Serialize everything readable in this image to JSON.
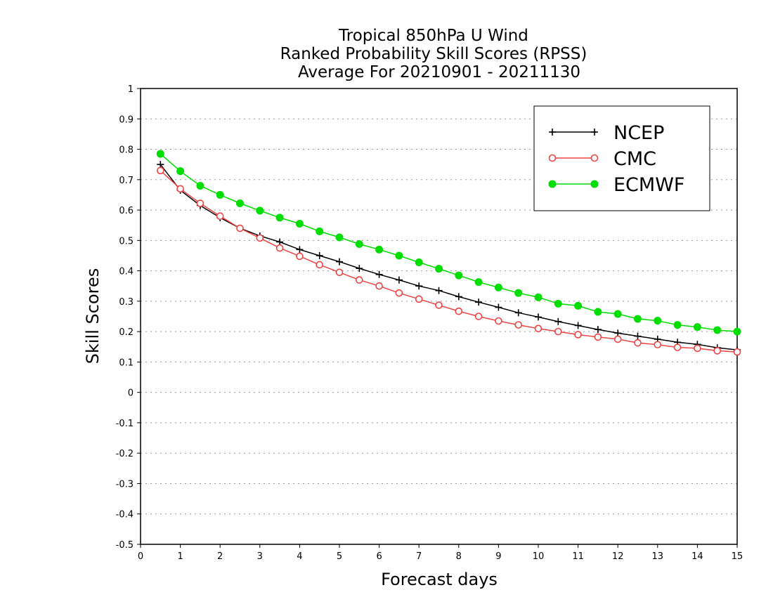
{
  "chart_data": {
    "type": "line",
    "title": [
      "Tropical 850hPa U Wind",
      "Ranked Probability Skill Scores (RPSS)",
      "Average For 20210901 - 20211130"
    ],
    "xlabel": "Forecast days",
    "ylabel": "Skill Scores",
    "xlim": [
      0,
      15
    ],
    "ylim": [
      -0.5,
      1
    ],
    "xticks": [
      "0",
      "1",
      "2",
      "3",
      "4",
      "5",
      "6",
      "7",
      "8",
      "9",
      "10",
      "11",
      "12",
      "13",
      "14",
      "15"
    ],
    "yticks": [
      "-0.5",
      "-0.4",
      "-0.3",
      "-0.2",
      "-0.1",
      "0",
      "0.1",
      "0.2",
      "0.3",
      "0.4",
      "0.5",
      "0.6",
      "0.7",
      "0.8",
      "0.9",
      "1"
    ],
    "grid": "horizontal dotted",
    "legend_position": "top-right",
    "x": [
      0.5,
      1,
      1.5,
      2,
      2.5,
      3,
      3.5,
      4,
      4.5,
      5,
      5.5,
      6,
      6.5,
      7,
      7.5,
      8,
      8.5,
      9,
      9.5,
      10,
      10.5,
      11,
      11.5,
      12,
      12.5,
      13,
      13.5,
      14,
      14.5,
      15
    ],
    "series": [
      {
        "name": "NCEP",
        "color": "#000000",
        "marker": "plus",
        "values": [
          0.75,
          0.665,
          0.615,
          0.575,
          0.54,
          0.515,
          0.495,
          0.47,
          0.45,
          0.43,
          0.408,
          0.388,
          0.37,
          0.35,
          0.335,
          0.315,
          0.297,
          0.28,
          0.262,
          0.248,
          0.233,
          0.22,
          0.207,
          0.195,
          0.185,
          0.175,
          0.165,
          0.158,
          0.147,
          0.14
        ]
      },
      {
        "name": "CMC",
        "color": "#ee4444",
        "marker": "open-circle",
        "values": [
          0.73,
          0.67,
          0.622,
          0.58,
          0.54,
          0.508,
          0.475,
          0.448,
          0.42,
          0.395,
          0.37,
          0.35,
          0.327,
          0.307,
          0.287,
          0.267,
          0.25,
          0.235,
          0.222,
          0.21,
          0.2,
          0.19,
          0.182,
          0.175,
          0.163,
          0.157,
          0.148,
          0.145,
          0.137,
          0.133
        ]
      },
      {
        "name": "ECMWF",
        "color": "#00dd00",
        "marker": "filled-circle",
        "values": [
          0.785,
          0.728,
          0.68,
          0.65,
          0.622,
          0.598,
          0.575,
          0.555,
          0.53,
          0.51,
          0.488,
          0.47,
          0.45,
          0.428,
          0.407,
          0.385,
          0.363,
          0.345,
          0.327,
          0.313,
          0.292,
          0.285,
          0.265,
          0.258,
          0.242,
          0.236,
          0.222,
          0.215,
          0.205,
          0.2
        ]
      }
    ]
  }
}
